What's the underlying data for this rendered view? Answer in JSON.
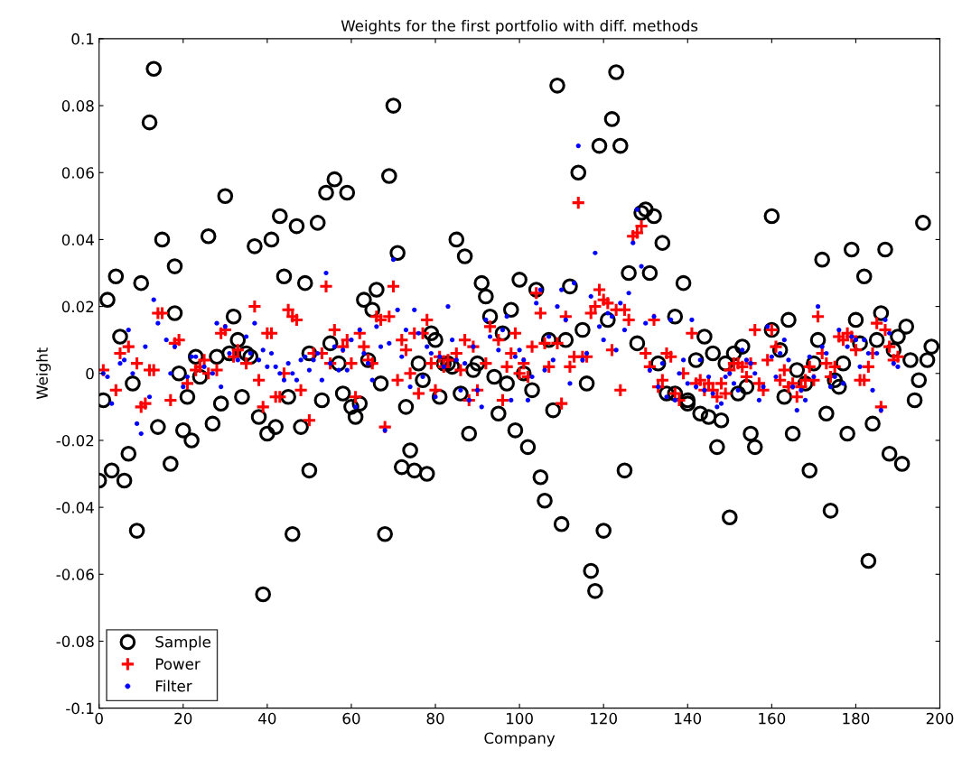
{
  "chart_data": {
    "type": "scatter",
    "title": "Weights for the first portfolio with diff. methods",
    "xlabel": "Company",
    "ylabel": "Weight",
    "xlim": [
      0,
      200
    ],
    "xticks": [
      0,
      20,
      40,
      60,
      80,
      100,
      120,
      140,
      160,
      180,
      200
    ],
    "ylim": [
      -0.1,
      0.1
    ],
    "yticks": [
      -0.1,
      -0.08,
      -0.06,
      -0.04,
      -0.02,
      0,
      0.02,
      0.04,
      0.06,
      0.08,
      0.1
    ],
    "legend": "bottom left",
    "grid": false,
    "series": [
      {
        "name": "Sample",
        "color": "#000000",
        "marker": "circle",
        "x": [
          0,
          1,
          2,
          3,
          4,
          5,
          6,
          7,
          8,
          9,
          10,
          12,
          13,
          14,
          15,
          17,
          18,
          18,
          19,
          20,
          21,
          22,
          23,
          24,
          26,
          27,
          28,
          29,
          30,
          31,
          32,
          33,
          34,
          35,
          36,
          37,
          38,
          39,
          40,
          41,
          42,
          43,
          44,
          45,
          46,
          47,
          48,
          49,
          50,
          50,
          52,
          53,
          54,
          55,
          56,
          57,
          58,
          59,
          60,
          61,
          62,
          63,
          64,
          65,
          66,
          67,
          68,
          69,
          70,
          71,
          72,
          73,
          74,
          75,
          76,
          77,
          78,
          79,
          80,
          81,
          82,
          83,
          84,
          85,
          86,
          87,
          88,
          89,
          90,
          91,
          92,
          93,
          94,
          95,
          96,
          97,
          98,
          99,
          100,
          101,
          102,
          103,
          104,
          105,
          106,
          107,
          108,
          109,
          110,
          111,
          112,
          114,
          115,
          116,
          117,
          118,
          119,
          120,
          121,
          122,
          123,
          124,
          125,
          126,
          128,
          129,
          130,
          131,
          132,
          133,
          134,
          135,
          137,
          137,
          139,
          140,
          140,
          142,
          143,
          144,
          145,
          146,
          147,
          148,
          149,
          150,
          151,
          152,
          153,
          154,
          155,
          156,
          160,
          160,
          162,
          163,
          164,
          165,
          166,
          168,
          169,
          170,
          171,
          172,
          173,
          174,
          175,
          176,
          177,
          178,
          179,
          180,
          181,
          182,
          183,
          184,
          185,
          186,
          187,
          188,
          189,
          190,
          191,
          192,
          193,
          194,
          195,
          196,
          197,
          198
        ],
        "values": [
          -0.032,
          -0.008,
          0.022,
          -0.029,
          0.029,
          0.011,
          -0.032,
          -0.024,
          -0.003,
          -0.047,
          0.027,
          0.075,
          0.091,
          -0.016,
          0.04,
          -0.027,
          0.018,
          0.032,
          0.0,
          -0.017,
          -0.007,
          -0.02,
          0.005,
          -0.001,
          0.041,
          -0.015,
          0.005,
          -0.009,
          0.053,
          0.006,
          0.017,
          0.01,
          -0.007,
          0.006,
          0.005,
          0.038,
          -0.013,
          -0.066,
          -0.018,
          0.04,
          -0.016,
          0.047,
          0.029,
          -0.007,
          -0.048,
          0.044,
          -0.016,
          0.027,
          -0.029,
          0.006,
          0.045,
          -0.008,
          0.054,
          0.009,
          0.058,
          0.003,
          -0.006,
          0.054,
          -0.01,
          -0.013,
          -0.009,
          0.022,
          0.004,
          0.019,
          0.025,
          -0.003,
          -0.048,
          0.059,
          0.08,
          0.036,
          -0.028,
          -0.01,
          -0.023,
          -0.029,
          0.003,
          -0.002,
          -0.03,
          0.012,
          0.01,
          -0.007,
          0.003,
          0.003,
          0.002,
          0.04,
          -0.006,
          0.035,
          -0.018,
          0.001,
          0.003,
          0.027,
          0.023,
          0.017,
          -0.001,
          -0.012,
          0.012,
          -0.003,
          0.019,
          -0.017,
          0.028,
          0.0,
          -0.022,
          -0.005,
          0.025,
          -0.031,
          -0.038,
          0.01,
          -0.011,
          0.086,
          -0.045,
          0.01,
          0.026,
          0.06,
          0.013,
          -0.003,
          -0.059,
          -0.065,
          0.068,
          -0.047,
          0.016,
          0.076,
          0.09,
          0.068,
          -0.029,
          0.03,
          0.009,
          0.048,
          0.049,
          0.03,
          0.047,
          0.003,
          0.039,
          -0.006,
          -0.006,
          0.017,
          0.027,
          -0.008,
          -0.009,
          0.004,
          -0.012,
          0.011,
          -0.013,
          0.006,
          -0.022,
          -0.014,
          0.003,
          -0.043,
          0.006,
          -0.006,
          0.008,
          -0.004,
          -0.018,
          -0.022,
          0.047,
          0.013,
          0.007,
          -0.007,
          0.016,
          -0.018,
          0.001,
          -0.003,
          -0.029,
          0.003,
          0.01,
          0.034,
          -0.012,
          -0.041,
          -0.002,
          -0.004,
          0.003,
          -0.018,
          0.037,
          0.016,
          0.009,
          0.029,
          -0.056,
          -0.015,
          0.01,
          0.018,
          0.037,
          -0.024,
          0.007,
          0.011,
          -0.027,
          0.014,
          0.004,
          -0.008,
          -0.002,
          0.045,
          0.004,
          0.008
        ]
      },
      {
        "name": "Power",
        "color": "#ff0000",
        "marker": "cross",
        "x": [
          1,
          4,
          5,
          7,
          9,
          10,
          11,
          12,
          13,
          14,
          15,
          17,
          18,
          19,
          21,
          23,
          24,
          25,
          26,
          28,
          29,
          30,
          32,
          33,
          35,
          37,
          38,
          39,
          40,
          41,
          42,
          43,
          44,
          45,
          46,
          47,
          48,
          50,
          51,
          53,
          54,
          55,
          56,
          58,
          59,
          60,
          61,
          62,
          63,
          64,
          65,
          66,
          67,
          68,
          69,
          70,
          71,
          72,
          73,
          74,
          75,
          76,
          77,
          78,
          79,
          80,
          81,
          82,
          83,
          85,
          86,
          87,
          88,
          89,
          90,
          92,
          93,
          95,
          96,
          97,
          98,
          99,
          100,
          101,
          102,
          103,
          104,
          105,
          106,
          107,
          109,
          110,
          111,
          112,
          113,
          114,
          115,
          116,
          117,
          118,
          119,
          120,
          121,
          122,
          123,
          124,
          125,
          126,
          127,
          128,
          129,
          130,
          131,
          132,
          133,
          134,
          135,
          136,
          137,
          138,
          139,
          141,
          142,
          143,
          144,
          145,
          146,
          147,
          148,
          149,
          150,
          151,
          152,
          153,
          154,
          155,
          156,
          157,
          158,
          159,
          160,
          161,
          162,
          163,
          164,
          165,
          166,
          167,
          168,
          169,
          170,
          171,
          172,
          173,
          174,
          175,
          176,
          177,
          178,
          179,
          180,
          181,
          182,
          183,
          184,
          185,
          186,
          187,
          188,
          189,
          190
        ],
        "values": [
          0.001,
          -0.005,
          0.006,
          0.008,
          0.003,
          -0.01,
          -0.009,
          0.001,
          0.001,
          0.018,
          0.018,
          -0.008,
          0.009,
          0.01,
          -0.003,
          0.001,
          0.002,
          0.004,
          0.0,
          0.001,
          0.012,
          0.013,
          0.005,
          0.007,
          0.003,
          0.02,
          -0.002,
          -0.01,
          0.012,
          0.012,
          -0.007,
          -0.007,
          0.0,
          0.019,
          0.017,
          0.016,
          -0.005,
          -0.014,
          0.006,
          0.006,
          0.026,
          0.003,
          0.013,
          0.008,
          0.01,
          0.003,
          -0.007,
          0.012,
          0.008,
          0.004,
          0.003,
          0.017,
          0.016,
          -0.016,
          0.017,
          0.026,
          -0.002,
          0.01,
          0.007,
          0.0,
          0.012,
          -0.006,
          0.012,
          0.016,
          0.003,
          -0.005,
          0.005,
          0.002,
          0.004,
          0.006,
          0.001,
          0.01,
          -0.008,
          0.008,
          -0.005,
          0.003,
          0.014,
          0.01,
          -0.008,
          0.002,
          0.006,
          0.012,
          0.0,
          0.003,
          -0.001,
          0.008,
          0.024,
          0.018,
          0.009,
          0.002,
          0.009,
          -0.009,
          0.017,
          0.002,
          0.005,
          0.051,
          0.005,
          0.005,
          0.018,
          0.02,
          0.025,
          0.022,
          0.021,
          0.007,
          0.019,
          -0.005,
          0.019,
          0.016,
          0.041,
          0.042,
          0.044,
          0.006,
          0.002,
          0.016,
          -0.004,
          -0.002,
          0.006,
          0.005,
          -0.006,
          -0.008,
          0.0,
          0.012,
          -0.003,
          -0.002,
          -0.005,
          -0.003,
          -0.005,
          -0.007,
          -0.003,
          -0.006,
          0.001,
          0.003,
          0.003,
          0.002,
          -0.001,
          0.003,
          0.013,
          -0.003,
          -0.005,
          0.004,
          0.013,
          0.008,
          -0.002,
          0.001,
          -0.004,
          -0.003,
          -0.007,
          -0.004,
          -0.002,
          0.002,
          -0.002,
          0.017,
          0.006,
          0.003,
          -0.001,
          0.002,
          0.011,
          0.01,
          0.012,
          0.011,
          0.007,
          -0.002,
          -0.002,
          0.002,
          0.006,
          0.015,
          -0.01,
          0.013,
          0.008,
          0.004,
          0.005
        ]
      },
      {
        "name": "Filter",
        "color": "#0000ff",
        "marker": "circle",
        "x": [
          1,
          2,
          3,
          5,
          6,
          7,
          8,
          9,
          10,
          11,
          12,
          13,
          14,
          16,
          17,
          18,
          20,
          21,
          22,
          23,
          25,
          27,
          28,
          29,
          30,
          31,
          33,
          35,
          36,
          37,
          38,
          39,
          40,
          41,
          42,
          43,
          44,
          45,
          46,
          47,
          48,
          49,
          50,
          51,
          52,
          53,
          54,
          55,
          56,
          57,
          58,
          59,
          60,
          61,
          62,
          63,
          64,
          65,
          66,
          67,
          68,
          69,
          70,
          71,
          72,
          73,
          74,
          75,
          76,
          77,
          78,
          79,
          80,
          81,
          82,
          83,
          84,
          85,
          86,
          87,
          88,
          89,
          90,
          91,
          92,
          93,
          95,
          96,
          97,
          98,
          99,
          100,
          101,
          102,
          103,
          104,
          105,
          106,
          107,
          108,
          109,
          110,
          111,
          112,
          113,
          114,
          115,
          116,
          117,
          118,
          119,
          120,
          121,
          122,
          123,
          124,
          125,
          126,
          127,
          128,
          129,
          130,
          131,
          132,
          133,
          134,
          135,
          136,
          137,
          138,
          139,
          140,
          141,
          142,
          143,
          144,
          145,
          146,
          147,
          148,
          149,
          150,
          151,
          152,
          153,
          154,
          155,
          156,
          157,
          158,
          159,
          160,
          161,
          162,
          163,
          164,
          165,
          166,
          167,
          168,
          169,
          170,
          171,
          172,
          173,
          174,
          175,
          176,
          177,
          178,
          179,
          180,
          181,
          182,
          183,
          184,
          185,
          186,
          187,
          188,
          189,
          190
        ],
        "values": [
          0.0,
          -0.001,
          -0.009,
          0.003,
          0.004,
          0.013,
          0.0,
          -0.015,
          -0.018,
          0.008,
          -0.007,
          0.022,
          0.015,
          0.01,
          0.0,
          0.008,
          -0.004,
          -0.001,
          0.005,
          0.005,
          0.002,
          0.0,
          0.015,
          -0.004,
          0.014,
          0.006,
          0.004,
          0.011,
          0.006,
          0.015,
          0.004,
          0.007,
          0.002,
          0.006,
          0.002,
          0.0,
          -0.002,
          0.003,
          0.0,
          -0.002,
          0.004,
          0.005,
          0.001,
          0.004,
          0.006,
          -0.002,
          0.03,
          0.003,
          0.008,
          0.001,
          0.007,
          0.001,
          0.01,
          -0.01,
          0.013,
          0.006,
          0.003,
          -0.002,
          0.014,
          0.008,
          -0.017,
          0.009,
          0.034,
          0.019,
          0.005,
          0.013,
          -0.004,
          0.019,
          0.012,
          -0.001,
          0.008,
          0.006,
          -0.007,
          0.005,
          0.002,
          0.02,
          0.01,
          0.004,
          -0.005,
          0.003,
          -0.008,
          0.008,
          -0.005,
          -0.01,
          0.016,
          0.011,
          0.007,
          0.013,
          0.017,
          -0.008,
          0.005,
          0.007,
          0.004,
          -0.008,
          -0.001,
          0.021,
          0.025,
          0.001,
          0.011,
          0.004,
          0.02,
          0.025,
          0.016,
          -0.003,
          0.027,
          0.068,
          0.004,
          0.006,
          0.023,
          0.036,
          0.014,
          0.01,
          0.018,
          0.017,
          0.007,
          0.021,
          0.013,
          0.024,
          0.039,
          0.049,
          0.032,
          0.015,
          0.001,
          0.017,
          -0.004,
          0.003,
          -0.007,
          0.016,
          -0.008,
          0.0,
          0.004,
          -0.003,
          0.016,
          -0.004,
          0.004,
          -0.005,
          -0.001,
          -0.006,
          -0.01,
          -0.009,
          -0.001,
          0.0,
          -0.003,
          -0.005,
          0.007,
          0.004,
          0.003,
          0.0,
          -0.008,
          -0.004,
          0.014,
          0.005,
          -0.001,
          0.006,
          0.01,
          0.004,
          -0.004,
          -0.011,
          -0.005,
          -0.008,
          0.005,
          -0.001,
          0.02,
          0.008,
          0.006,
          -0.004,
          -0.001,
          0.013,
          -0.003,
          0.008,
          0.011,
          0.01,
          0.002,
          0.01,
          0.006,
          -0.005,
          0.006,
          -0.011,
          0.016,
          0.012,
          0.003,
          0.002
        ]
      }
    ]
  }
}
